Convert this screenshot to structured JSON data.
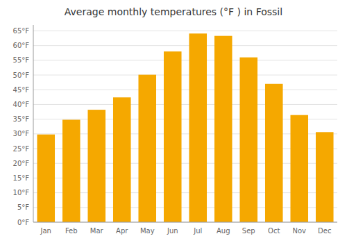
{
  "chart_data": {
    "type": "bar",
    "title": "Average monthly temperatures (°F ) in Fossil",
    "categories": [
      "Jan",
      "Feb",
      "Mar",
      "Apr",
      "May",
      "Jun",
      "Jul",
      "Aug",
      "Sep",
      "Oct",
      "Nov",
      "Dec"
    ],
    "values": [
      29.8,
      34.8,
      38.2,
      42.4,
      50.1,
      58.0,
      64.1,
      63.3,
      56.0,
      47.0,
      36.4,
      30.6
    ],
    "color": "#F5A800",
    "ylim": [
      0,
      67
    ],
    "yticks": [
      {
        "value": 0,
        "label": "0°F"
      },
      {
        "value": 5,
        "label": "5°F"
      },
      {
        "value": 10,
        "label": "10°F"
      },
      {
        "value": 15,
        "label": "15°F"
      },
      {
        "value": 20,
        "label": "20°F"
      },
      {
        "value": 25,
        "label": "25°F"
      },
      {
        "value": 30,
        "label": "30°F"
      },
      {
        "value": 35,
        "label": "35°F"
      },
      {
        "value": 40,
        "label": "40°F"
      },
      {
        "value": 45,
        "label": "45°F"
      },
      {
        "value": 50,
        "label": "50°F"
      },
      {
        "value": 55,
        "label": "55°F"
      },
      {
        "value": 60,
        "label": "60°F"
      },
      {
        "value": 65,
        "label": "65°F"
      }
    ],
    "grid": true
  }
}
